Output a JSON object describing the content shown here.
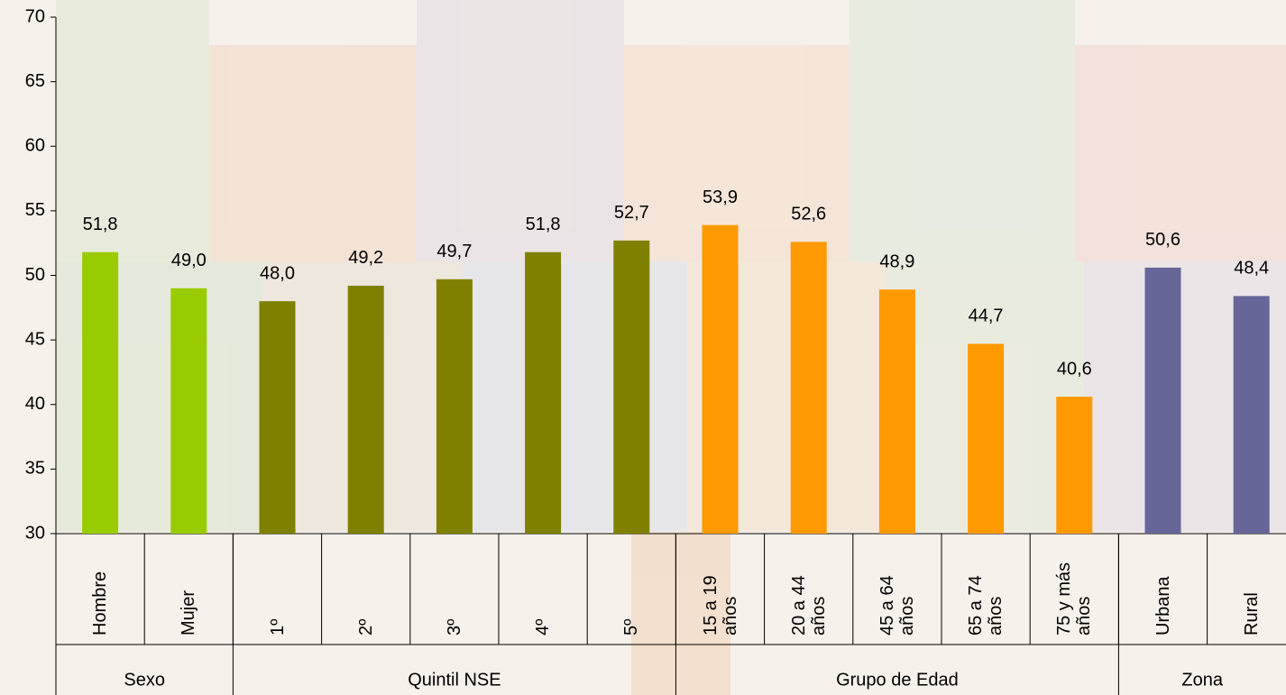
{
  "chart_data": {
    "type": "bar",
    "categories": [
      "Hombre",
      "Mujer",
      "1º",
      "2º",
      "3º",
      "4º",
      "5º",
      "15 a 19 años",
      "20 a 44 años",
      "45 a 64 años",
      "65 a 74 años",
      "75 y más años",
      "Urbana",
      "Rural"
    ],
    "values": [
      51.8,
      49.0,
      48.0,
      49.2,
      49.7,
      51.8,
      52.7,
      53.9,
      52.6,
      48.9,
      44.7,
      40.6,
      50.6,
      48.4
    ],
    "value_labels": [
      "51,8",
      "49,0",
      "48,0",
      "49,2",
      "49,7",
      "51,8",
      "52,7",
      "53,9",
      "52,6",
      "48,9",
      "44,7",
      "40,6",
      "50,6",
      "48,4"
    ],
    "groups": [
      {
        "label": "Sexo",
        "count": 2,
        "color": "#99cc00"
      },
      {
        "label": "Quintil NSE",
        "count": 5,
        "color": "#808000"
      },
      {
        "label": "Grupo de Edad",
        "count": 5,
        "color": "#ff9900"
      },
      {
        "label": "Zona",
        "count": 2,
        "color": "#666699"
      }
    ],
    "ylim": [
      30,
      70
    ],
    "yticks": [
      30,
      35,
      40,
      45,
      50,
      55,
      60,
      65,
      70
    ]
  }
}
